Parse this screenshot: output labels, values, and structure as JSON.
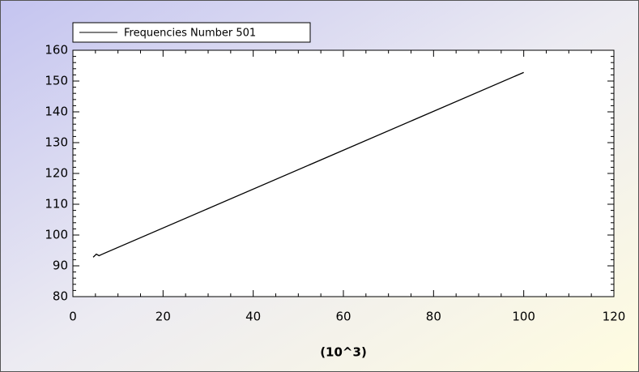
{
  "chart_data": {
    "type": "line",
    "legend_label": "Frequencies Number 501",
    "xlabel": "(10^3)",
    "series": [
      {
        "name": "Frequencies Number 501",
        "color": "#000000",
        "x": [
          4.5,
          5.2,
          5.8,
          6.4,
          100
        ],
        "values": [
          92.8,
          93.8,
          93.3,
          93.7,
          152.8
        ]
      }
    ],
    "xlim": [
      0,
      120
    ],
    "xticks": [
      0,
      20,
      40,
      60,
      80,
      100,
      120
    ],
    "xminorticks": [
      5,
      10,
      15,
      25,
      30,
      35,
      45,
      50,
      55,
      65,
      70,
      75,
      85,
      90,
      95,
      105,
      110,
      115
    ],
    "ylim": [
      80,
      160
    ],
    "yticks": [
      80,
      90,
      100,
      110,
      120,
      130,
      140,
      150,
      160
    ],
    "yminorticks": [
      82,
      84,
      86,
      88,
      92,
      94,
      96,
      98,
      102,
      104,
      106,
      108,
      112,
      114,
      116,
      118,
      122,
      124,
      126,
      128,
      132,
      134,
      136,
      138,
      142,
      144,
      146,
      148,
      152,
      154,
      156,
      158
    ],
    "legend": "top-left",
    "grid": false
  }
}
